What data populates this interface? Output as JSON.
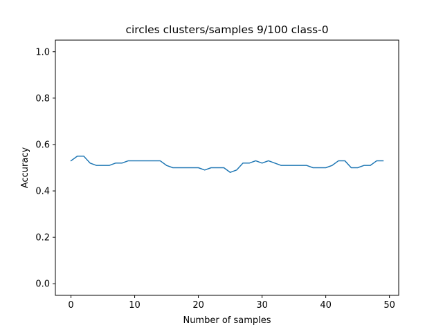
{
  "chart_data": {
    "type": "line",
    "title": "circles clusters/samples 9/100 class-0",
    "xlabel": "Number of samples",
    "ylabel": "Accuracy",
    "xlim": [
      -2.45,
      51.45
    ],
    "ylim": [
      -0.05,
      1.05
    ],
    "xticks": [
      0,
      10,
      20,
      30,
      40,
      50
    ],
    "yticks": [
      0.0,
      0.2,
      0.4,
      0.6,
      0.8,
      1.0
    ],
    "xtick_labels": [
      "0",
      "10",
      "20",
      "30",
      "40",
      "50"
    ],
    "ytick_labels": [
      "0.0",
      "0.2",
      "0.4",
      "0.6",
      "0.8",
      "1.0"
    ],
    "grid": false,
    "series": [
      {
        "color": "#1f77b4",
        "x": [
          0,
          1,
          2,
          3,
          4,
          5,
          6,
          7,
          8,
          9,
          10,
          11,
          12,
          13,
          14,
          15,
          16,
          17,
          18,
          19,
          20,
          21,
          22,
          23,
          24,
          25,
          26,
          27,
          28,
          29,
          30,
          31,
          32,
          33,
          34,
          35,
          36,
          37,
          38,
          39,
          40,
          41,
          42,
          43,
          44,
          45,
          46,
          47,
          48,
          49
        ],
        "values": [
          0.53,
          0.55,
          0.55,
          0.52,
          0.51,
          0.51,
          0.51,
          0.52,
          0.52,
          0.53,
          0.53,
          0.53,
          0.53,
          0.53,
          0.53,
          0.51,
          0.5,
          0.5,
          0.5,
          0.5,
          0.5,
          0.49,
          0.5,
          0.5,
          0.5,
          0.48,
          0.49,
          0.52,
          0.52,
          0.53,
          0.52,
          0.53,
          0.52,
          0.51,
          0.51,
          0.51,
          0.51,
          0.51,
          0.5,
          0.5,
          0.5,
          0.51,
          0.53,
          0.53,
          0.5,
          0.5,
          0.51,
          0.51,
          0.53,
          0.53
        ]
      }
    ]
  }
}
